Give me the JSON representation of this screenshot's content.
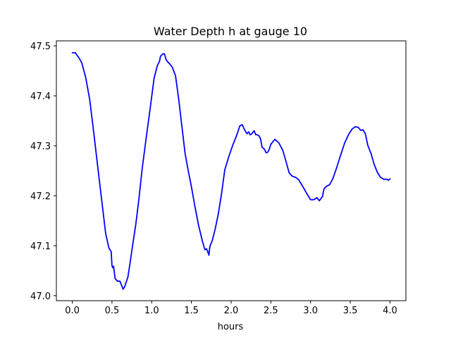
{
  "chart_data": {
    "type": "line",
    "title": "Water Depth h at gauge 10",
    "xlabel": "hours",
    "ylabel": "",
    "xlim": [
      -0.2,
      4.2
    ],
    "ylim": [
      46.99,
      47.51
    ],
    "grid": false,
    "x_ticks": [
      0.0,
      0.5,
      1.0,
      1.5,
      2.0,
      2.5,
      3.0,
      3.5,
      4.0
    ],
    "x_tick_labels": [
      "0.0",
      "0.5",
      "1.0",
      "1.5",
      "2.0",
      "2.5",
      "3.0",
      "3.5",
      "4.0"
    ],
    "y_ticks": [
      47.0,
      47.1,
      47.2,
      47.3,
      47.4,
      47.5
    ],
    "y_tick_labels": [
      "47.0",
      "47.1",
      "47.2",
      "47.3",
      "47.4",
      "47.5"
    ],
    "series": [
      {
        "color": "#0000ff",
        "x": [
          0.0,
          0.04,
          0.06,
          0.08,
          0.12,
          0.17,
          0.22,
          0.27,
          0.32,
          0.37,
          0.42,
          0.46,
          0.49,
          0.5,
          0.51,
          0.52,
          0.54,
          0.57,
          0.6,
          0.62,
          0.64,
          0.66,
          0.7,
          0.73,
          0.76,
          0.8,
          0.84,
          0.88,
          0.93,
          0.98,
          1.03,
          1.07,
          1.1,
          1.11,
          1.14,
          1.16,
          1.18,
          1.2,
          1.22,
          1.26,
          1.3,
          1.34,
          1.38,
          1.42,
          1.46,
          1.5,
          1.54,
          1.59,
          1.64,
          1.67,
          1.69,
          1.71,
          1.72,
          1.73,
          1.74,
          1.76,
          1.8,
          1.84,
          1.88,
          1.92,
          1.97,
          2.02,
          2.07,
          2.11,
          2.14,
          2.16,
          2.18,
          2.2,
          2.22,
          2.24,
          2.26,
          2.29,
          2.31,
          2.33,
          2.35,
          2.37,
          2.39,
          2.42,
          2.44,
          2.46,
          2.48,
          2.5,
          2.52,
          2.55,
          2.6,
          2.65,
          2.69,
          2.73,
          2.77,
          2.81,
          2.85,
          2.9,
          2.95,
          3.0,
          3.04,
          3.08,
          3.11,
          3.13,
          3.14,
          3.15,
          3.16,
          3.17,
          3.2,
          3.24,
          3.28,
          3.33,
          3.38,
          3.43,
          3.48,
          3.52,
          3.56,
          3.6,
          3.63,
          3.66,
          3.69,
          3.72,
          3.76,
          3.8,
          3.84,
          3.88,
          3.92,
          3.96,
          3.98,
          4.0
        ],
        "y": [
          47.486,
          47.486,
          47.481,
          47.477,
          47.466,
          47.436,
          47.392,
          47.327,
          47.259,
          47.192,
          47.125,
          47.096,
          47.088,
          47.06,
          47.056,
          47.059,
          47.034,
          47.029,
          47.029,
          47.021,
          47.013,
          47.018,
          47.037,
          47.068,
          47.101,
          47.143,
          47.195,
          47.254,
          47.315,
          47.374,
          47.435,
          47.46,
          47.47,
          47.479,
          47.484,
          47.484,
          47.473,
          47.468,
          47.465,
          47.457,
          47.44,
          47.393,
          47.339,
          47.285,
          47.25,
          47.218,
          47.182,
          47.141,
          47.108,
          47.092,
          47.094,
          47.086,
          47.081,
          47.096,
          47.102,
          47.109,
          47.134,
          47.165,
          47.205,
          47.252,
          47.278,
          47.301,
          47.321,
          47.34,
          47.342,
          47.335,
          47.329,
          47.324,
          47.328,
          47.322,
          47.324,
          47.33,
          47.322,
          47.322,
          47.32,
          47.314,
          47.297,
          47.293,
          47.286,
          47.287,
          47.293,
          47.303,
          47.307,
          47.313,
          47.306,
          47.291,
          47.269,
          47.246,
          47.239,
          47.237,
          47.232,
          47.219,
          47.205,
          47.192,
          47.192,
          47.196,
          47.19,
          47.194,
          47.197,
          47.198,
          47.207,
          47.214,
          47.219,
          47.222,
          47.234,
          47.257,
          47.282,
          47.306,
          47.323,
          47.333,
          47.338,
          47.337,
          47.331,
          47.332,
          47.324,
          47.301,
          47.285,
          47.263,
          47.247,
          47.237,
          47.233,
          47.233,
          47.231,
          47.234
        ]
      }
    ]
  }
}
